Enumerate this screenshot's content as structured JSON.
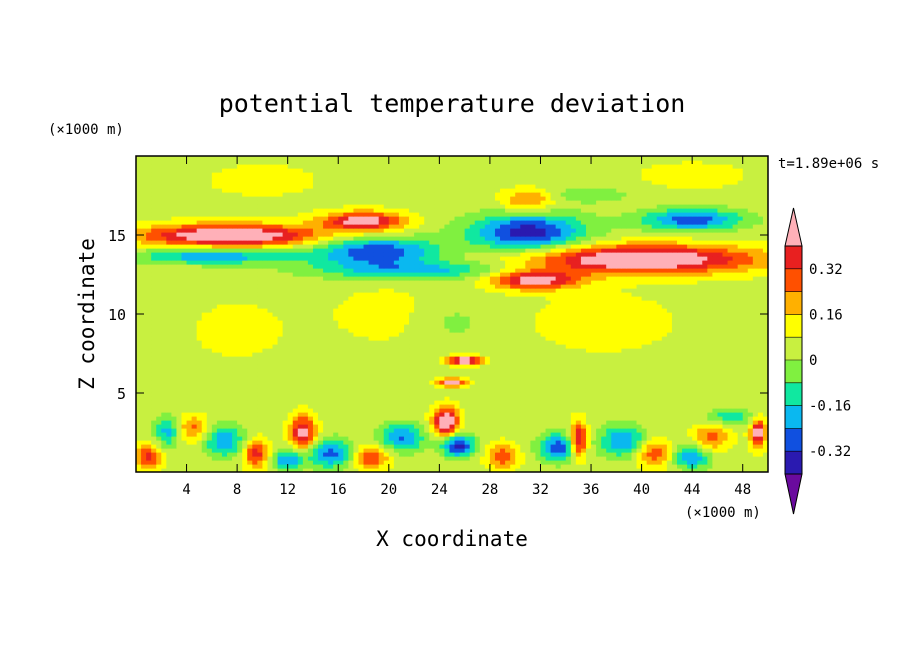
{
  "chart_data": {
    "type": "heatmap",
    "title": "potential temperature deviation",
    "xlabel": "X coordinate",
    "ylabel": "Z coordinate",
    "x_unit": "(×1000 m)",
    "y_unit": "(×1000 m)",
    "time_label": "t=1.89e+06 s",
    "xlim": [
      0,
      50
    ],
    "ylim": [
      0,
      20
    ],
    "x_ticks": [
      "4",
      "8",
      "12",
      "16",
      "20",
      "24",
      "28",
      "32",
      "36",
      "40",
      "44",
      "48"
    ],
    "y_ticks": [
      "5",
      "10",
      "15"
    ],
    "colorbar": {
      "tick_labels": [
        "0.32",
        "0.16",
        "0",
        "-0.16",
        "-0.32"
      ],
      "levels": [
        -0.4,
        -0.32,
        -0.24,
        -0.16,
        -0.08,
        0,
        0.08,
        0.16,
        0.24,
        0.32,
        0.4
      ],
      "colors": [
        "#6a0a9e",
        "#2a1ab0",
        "#1050e0",
        "#0ab8f0",
        "#10e8a0",
        "#80f040",
        "#c8f040",
        "#ffff00",
        "#ffb000",
        "#ff5000",
        "#e82020",
        "#ffb0b8"
      ],
      "extend": "both"
    },
    "features": [
      {
        "x": 7.5,
        "z": 15.0,
        "sx": 7.0,
        "sz": 0.7,
        "v": 0.5
      },
      {
        "x": 40.0,
        "z": 13.5,
        "sx": 9.0,
        "sz": 0.9,
        "v": 0.5
      },
      {
        "x": 31.5,
        "z": 12.2,
        "sx": 3.5,
        "sz": 0.6,
        "v": 0.42
      },
      {
        "x": 18.0,
        "z": 15.9,
        "sx": 3.2,
        "sz": 0.6,
        "v": 0.42
      },
      {
        "x": 31.0,
        "z": 17.2,
        "sx": 2.0,
        "sz": 0.7,
        "v": 0.22
      },
      {
        "x": 6.0,
        "z": 13.7,
        "sx": 6.0,
        "sz": 0.5,
        "v": -0.28
      },
      {
        "x": 19.0,
        "z": 14.0,
        "sx": 5.0,
        "sz": 0.9,
        "v": -0.36
      },
      {
        "x": 31.0,
        "z": 15.2,
        "sx": 4.5,
        "sz": 1.2,
        "v": -0.42
      },
      {
        "x": 44.0,
        "z": 16.0,
        "sx": 4.0,
        "sz": 0.7,
        "v": -0.34
      },
      {
        "x": 22.0,
        "z": 12.8,
        "sx": 8.0,
        "sz": 0.6,
        "v": -0.24
      },
      {
        "x": 36.0,
        "z": 17.6,
        "sx": 3.0,
        "sz": 0.5,
        "v": -0.12
      },
      {
        "x": 26.0,
        "z": 7.1,
        "sx": 1.3,
        "sz": 0.3,
        "v": 0.45
      },
      {
        "x": 25.0,
        "z": 5.7,
        "sx": 1.2,
        "sz": 0.25,
        "v": 0.4
      },
      {
        "x": 24.5,
        "z": 3.2,
        "sx": 1.0,
        "sz": 0.9,
        "v": 0.48
      },
      {
        "x": 13.2,
        "z": 2.5,
        "sx": 1.0,
        "sz": 1.1,
        "v": 0.4
      },
      {
        "x": 35.0,
        "z": 2.0,
        "sx": 0.7,
        "sz": 1.1,
        "v": 0.45
      },
      {
        "x": 49.2,
        "z": 2.5,
        "sx": 0.6,
        "sz": 0.9,
        "v": 0.45
      },
      {
        "x": 4.5,
        "z": 2.8,
        "sx": 1.2,
        "sz": 0.8,
        "v": 0.22
      },
      {
        "x": 1.0,
        "z": 1.0,
        "sx": 1.0,
        "sz": 0.8,
        "v": 0.3
      },
      {
        "x": 9.5,
        "z": 1.2,
        "sx": 1.0,
        "sz": 0.9,
        "v": 0.32
      },
      {
        "x": 18.5,
        "z": 1.0,
        "sx": 1.5,
        "sz": 0.8,
        "v": 0.3
      },
      {
        "x": 29.0,
        "z": 1.0,
        "sx": 1.2,
        "sz": 0.8,
        "v": 0.26
      },
      {
        "x": 41.0,
        "z": 1.2,
        "sx": 1.4,
        "sz": 0.9,
        "v": 0.26
      },
      {
        "x": 45.5,
        "z": 2.2,
        "sx": 1.4,
        "sz": 1.0,
        "v": 0.22
      },
      {
        "x": 25.5,
        "z": 1.7,
        "sx": 1.3,
        "sz": 0.7,
        "v": -0.42
      },
      {
        "x": 33.5,
        "z": 1.6,
        "sx": 1.6,
        "sz": 0.9,
        "v": -0.34
      },
      {
        "x": 15.5,
        "z": 1.2,
        "sx": 2.0,
        "sz": 0.9,
        "v": -0.32
      },
      {
        "x": 21.0,
        "z": 2.2,
        "sx": 1.8,
        "sz": 0.9,
        "v": -0.3
      },
      {
        "x": 7.0,
        "z": 2.0,
        "sx": 1.6,
        "sz": 1.0,
        "v": -0.28
      },
      {
        "x": 38.5,
        "z": 2.0,
        "sx": 1.8,
        "sz": 1.0,
        "v": -0.3
      },
      {
        "x": 44.0,
        "z": 1.0,
        "sx": 1.6,
        "sz": 0.8,
        "v": -0.28
      },
      {
        "x": 12.0,
        "z": 0.8,
        "sx": 1.2,
        "sz": 0.6,
        "v": -0.3
      },
      {
        "x": 2.5,
        "z": 2.6,
        "sx": 1.0,
        "sz": 1.0,
        "v": -0.24
      },
      {
        "x": 47.0,
        "z": 3.5,
        "sx": 2.0,
        "sz": 0.5,
        "v": -0.2
      },
      {
        "x": 37.0,
        "z": 9.5,
        "sx": 6.0,
        "sz": 2.0,
        "v": 0.07
      },
      {
        "x": 20.0,
        "z": 10.0,
        "sx": 5.0,
        "sz": 2.0,
        "v": 0.06
      },
      {
        "x": 8.0,
        "z": 9.0,
        "sx": 4.0,
        "sz": 2.0,
        "v": 0.06
      },
      {
        "x": 25.0,
        "z": 9.5,
        "sx": 3.0,
        "sz": 1.5,
        "v": -0.08
      },
      {
        "x": 10.0,
        "z": 18.5,
        "sx": 5.0,
        "sz": 1.2,
        "v": 0.06
      },
      {
        "x": 44.0,
        "z": 18.8,
        "sx": 5.0,
        "sz": 1.0,
        "v": 0.06
      }
    ]
  }
}
